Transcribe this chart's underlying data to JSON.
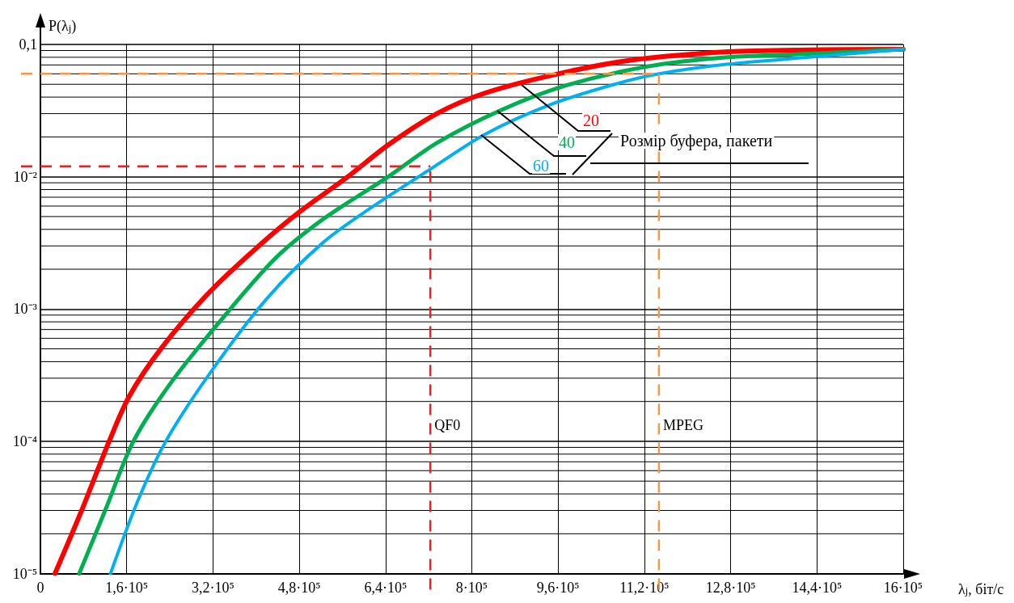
{
  "chart_data": {
    "type": "line",
    "xlabel": "λ$_{j}$, біт/с",
    "ylabel": "P(λ$_{j}$)",
    "xlim": [
      0,
      1600000
    ],
    "xticks": [
      {
        "value": 0,
        "label": "0"
      },
      {
        "value": 160000,
        "label": "1,6·10⁵"
      },
      {
        "value": 320000,
        "label": "3,2·10⁵"
      },
      {
        "value": 480000,
        "label": "4,8·10⁵"
      },
      {
        "value": 640000,
        "label": "6,4·10⁵"
      },
      {
        "value": 800000,
        "label": "8·10⁵"
      },
      {
        "value": 960000,
        "label": "9,6·10⁵"
      },
      {
        "value": 1120000,
        "label": "11,2·10⁵"
      },
      {
        "value": 1280000,
        "label": "12,8·10⁵"
      },
      {
        "value": 1440000,
        "label": "14,4·10⁵"
      },
      {
        "value": 1600000,
        "label": "16·10⁵"
      }
    ],
    "ylim": [
      1e-05,
      0.1
    ],
    "yticks": [
      {
        "value": 1e-05,
        "label": "10⁻⁵"
      },
      {
        "value": 0.0001,
        "label": "10⁻⁴"
      },
      {
        "value": 0.001,
        "label": "10⁻³"
      },
      {
        "value": 0.01,
        "label": "10⁻²"
      },
      {
        "value": 0.1,
        "label": "0,1"
      }
    ],
    "log": "y",
    "grid": true,
    "legend": false,
    "marker": "none",
    "line_style": "solid",
    "series": [
      {
        "name": "20",
        "color": "#ff0000",
        "x": [
          27000,
          75000,
          127500,
          165000,
          225000,
          315000,
          405000,
          480000,
          570000,
          645000,
          735000,
          825000,
          960000,
          1095000,
          1275000,
          1425000,
          1600000
        ],
        "values": [
          1e-05,
          2.9e-05,
          0.0001,
          0.00022,
          0.00051,
          0.00136,
          0.003,
          0.0054,
          0.01,
          0.0174,
          0.03,
          0.043,
          0.06,
          0.076,
          0.088,
          0.091,
          0.092
        ]
      },
      {
        "name": "40",
        "color": "#00b050",
        "x": [
          72000,
          120000,
          172500,
          240000,
          330000,
          435000,
          525000,
          645000,
          735000,
          855000,
          975000,
          1125000,
          1275000,
          1425000,
          1600000
        ],
        "values": [
          1e-05,
          3e-05,
          0.0001,
          0.00027,
          0.00078,
          0.0024,
          0.0048,
          0.01,
          0.018,
          0.032,
          0.049,
          0.068,
          0.08,
          0.085,
          0.092
        ]
      },
      {
        "name": "60",
        "color": "#00b0f0",
        "x": [
          130000,
          180000,
          232500,
          315000,
          420000,
          525000,
          615000,
          720000,
          825000,
          945000,
          1065000,
          1147500,
          1275000,
          1425000,
          1600000
        ],
        "values": [
          1e-05,
          3.5e-05,
          0.0001,
          0.00033,
          0.0012,
          0.0032,
          0.0059,
          0.0112,
          0.021,
          0.035,
          0.05,
          0.06,
          0.071,
          0.08,
          0.092
        ]
      }
    ],
    "ref_lines": [
      {
        "axis": "y",
        "value": 0.012,
        "color": "#e82020",
        "line_style": "dashed"
      },
      {
        "axis": "x",
        "value": 723000,
        "label": "QF0",
        "color": "#e82020",
        "line_style": "dashed"
      },
      {
        "axis": "y",
        "value": 0.06,
        "color": "#f79646",
        "line_style": "dashed"
      },
      {
        "axis": "x",
        "value": 1147000,
        "label": "MPEG",
        "color": "#f79646",
        "line_style": "dashed"
      }
    ],
    "legend_title": "Розмір буфера, пакети"
  }
}
